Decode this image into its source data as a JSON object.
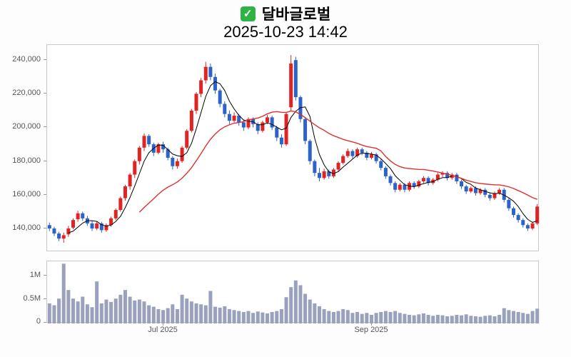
{
  "header": {
    "check_glyph": "✓",
    "title": "달바글로벌",
    "timestamp": "2025-10-23 14:42"
  },
  "price_axis": {
    "labels": [
      "240,000",
      "220,000",
      "200,000",
      "180,000",
      "160,000",
      "140,000"
    ],
    "values": [
      240000,
      220000,
      200000,
      180000,
      160000,
      140000
    ]
  },
  "volume_axis": {
    "labels": [
      "1M",
      "0.5M",
      "0"
    ],
    "values": [
      1000000,
      500000,
      0
    ]
  },
  "x_axis": {
    "labels": [
      "Jul 2025",
      "Sep 2025"
    ]
  },
  "chart_data": {
    "type": "candlestick",
    "title": "달바글로벌",
    "subtitle": "2025-10-23 14:42",
    "ylim": [
      126000,
      249000
    ],
    "volume_ylim": [
      0,
      1300000
    ],
    "ma_periods": {
      "short": 5,
      "long": 20
    },
    "legend_position": "none",
    "grid": false,
    "colors": {
      "up": "#e02323",
      "down": "#2d63c8",
      "ma_short": "#000000",
      "ma_long": "#e03030",
      "volume": "#99a1bd"
    },
    "candle_format": [
      "open",
      "high",
      "low",
      "close",
      "volume"
    ],
    "candles": [
      [
        142000,
        143500,
        138500,
        140000,
        420000
      ],
      [
        140000,
        141000,
        135500,
        137000,
        380000
      ],
      [
        137000,
        138000,
        132500,
        134000,
        520000
      ],
      [
        134000,
        137500,
        131500,
        136000,
        1250000
      ],
      [
        136500,
        141500,
        135000,
        140000,
        700000
      ],
      [
        140500,
        146000,
        139500,
        145000,
        520000
      ],
      [
        145500,
        150500,
        144000,
        149000,
        460000
      ],
      [
        149000,
        150000,
        144500,
        146000,
        560000
      ],
      [
        146000,
        147500,
        141500,
        143000,
        400000
      ],
      [
        143000,
        144500,
        138500,
        140000,
        340000
      ],
      [
        140000,
        144000,
        139000,
        143000,
        880000
      ],
      [
        143000,
        144000,
        137500,
        139000,
        420000
      ],
      [
        139000,
        143000,
        138000,
        142000,
        500000
      ],
      [
        142000,
        147000,
        141000,
        146000,
        450000
      ],
      [
        146000,
        152000,
        145000,
        151000,
        520000
      ],
      [
        151000,
        159000,
        150000,
        158000,
        600000
      ],
      [
        158000,
        166000,
        156500,
        165000,
        700000
      ],
      [
        165000,
        173000,
        163000,
        172000,
        560000
      ],
      [
        172000,
        181000,
        170000,
        180000,
        480000
      ],
      [
        180000,
        189000,
        178000,
        188000,
        500000
      ],
      [
        188000,
        196500,
        186000,
        195000,
        460000
      ],
      [
        195000,
        196000,
        188500,
        190000,
        380000
      ],
      [
        190000,
        191000,
        183000,
        185000,
        350000
      ],
      [
        185000,
        191000,
        184000,
        190000,
        300000
      ],
      [
        190000,
        191500,
        185000,
        187000,
        280000
      ],
      [
        187000,
        188000,
        180500,
        182000,
        320000
      ],
      [
        182000,
        183000,
        175000,
        177000,
        400000
      ],
      [
        177000,
        181500,
        175500,
        180000,
        300000
      ],
      [
        180000,
        189000,
        179000,
        188000,
        600000
      ],
      [
        188000,
        199000,
        187000,
        198000,
        520000
      ],
      [
        198000,
        211000,
        197000,
        210000,
        460000
      ],
      [
        210000,
        221000,
        208000,
        220000,
        420000
      ],
      [
        220000,
        229500,
        218000,
        228000,
        400000
      ],
      [
        228000,
        239000,
        226000,
        236000,
        380000
      ],
      [
        236000,
        238000,
        228000,
        230000,
        680000
      ],
      [
        230000,
        232000,
        220000,
        222000,
        350000
      ],
      [
        222000,
        223000,
        212000,
        214000,
        330000
      ],
      [
        214000,
        215500,
        206000,
        208000,
        360000
      ],
      [
        208000,
        210000,
        202000,
        204000,
        300000
      ],
      [
        204000,
        209000,
        203000,
        207000,
        280000
      ],
      [
        207000,
        208000,
        201000,
        203000,
        260000
      ],
      [
        203000,
        204500,
        198000,
        200000,
        240000
      ],
      [
        200000,
        206000,
        199000,
        205000,
        260000
      ],
      [
        205000,
        206000,
        200000,
        202000,
        220000
      ],
      [
        202000,
        203000,
        196000,
        198000,
        250000
      ],
      [
        198000,
        204000,
        197000,
        203000,
        230000
      ],
      [
        203000,
        207500,
        202000,
        206000,
        210000
      ],
      [
        206000,
        207000,
        198500,
        200000,
        240000
      ],
      [
        200000,
        201000,
        192000,
        194000,
        260000
      ],
      [
        194000,
        196000,
        188000,
        190000,
        300000
      ],
      [
        190000,
        209000,
        189000,
        208000,
        550000
      ],
      [
        212000,
        243000,
        210000,
        238000,
        760000
      ],
      [
        240000,
        242000,
        216000,
        218000,
        900000
      ],
      [
        218000,
        219000,
        203000,
        205000,
        800000
      ],
      [
        205000,
        206000,
        190000,
        192000,
        620000
      ],
      [
        192000,
        193000,
        178000,
        180000,
        500000
      ],
      [
        180000,
        181000,
        171000,
        173000,
        420000
      ],
      [
        173000,
        176000,
        168000,
        170000,
        360000
      ],
      [
        170000,
        175500,
        169000,
        174000,
        300000
      ],
      [
        174000,
        175000,
        169500,
        171000,
        260000
      ],
      [
        171000,
        176000,
        170000,
        175000,
        240000
      ],
      [
        175000,
        180000,
        174000,
        179000,
        260000
      ],
      [
        179000,
        184000,
        178000,
        183000,
        300000
      ],
      [
        183000,
        187500,
        182000,
        186000,
        280000
      ],
      [
        186000,
        187000,
        181500,
        183000,
        220000
      ],
      [
        183000,
        188000,
        182000,
        187000,
        240000
      ],
      [
        187000,
        188000,
        183500,
        185000,
        200000
      ],
      [
        185000,
        186000,
        180500,
        182000,
        220000
      ],
      [
        182000,
        185500,
        181000,
        184000,
        180000
      ],
      [
        184000,
        185000,
        178500,
        180000,
        220000
      ],
      [
        180000,
        181000,
        174500,
        176000,
        240000
      ],
      [
        176000,
        177000,
        169500,
        171000,
        260000
      ],
      [
        171000,
        172000,
        165500,
        167000,
        240000
      ],
      [
        167000,
        168000,
        161500,
        163000,
        260000
      ],
      [
        163000,
        167000,
        162000,
        166000,
        220000
      ],
      [
        166000,
        167000,
        161500,
        163000,
        200000
      ],
      [
        163000,
        168000,
        162000,
        167000,
        180000
      ],
      [
        167000,
        168000,
        163500,
        165000,
        170000
      ],
      [
        165000,
        169000,
        164000,
        168000,
        190000
      ],
      [
        168000,
        171000,
        167000,
        170000,
        210000
      ],
      [
        170000,
        171000,
        165500,
        167000,
        180000
      ],
      [
        167000,
        170000,
        166000,
        169000,
        160000
      ],
      [
        169000,
        173000,
        168000,
        172000,
        180000
      ],
      [
        172000,
        174000,
        170500,
        173000,
        170000
      ],
      [
        173000,
        174000,
        168500,
        170000,
        150000
      ],
      [
        170000,
        173000,
        169000,
        172000,
        160000
      ],
      [
        172000,
        173000,
        166500,
        168000,
        180000
      ],
      [
        168000,
        169000,
        163500,
        165000,
        170000
      ],
      [
        165000,
        166000,
        160500,
        162000,
        190000
      ],
      [
        162000,
        165000,
        161000,
        164000,
        160000
      ],
      [
        164000,
        165000,
        159500,
        161000,
        150000
      ],
      [
        161000,
        164000,
        160000,
        163000,
        140000
      ],
      [
        163000,
        164000,
        158500,
        160000,
        160000
      ],
      [
        160000,
        161000,
        156500,
        158000,
        170000
      ],
      [
        158000,
        162000,
        157000,
        161000,
        150000
      ],
      [
        161000,
        164000,
        160000,
        163000,
        180000
      ],
      [
        163000,
        164000,
        155500,
        157000,
        320000
      ],
      [
        157000,
        158000,
        150500,
        152000,
        280000
      ],
      [
        152000,
        153000,
        146500,
        148000,
        260000
      ],
      [
        148000,
        149000,
        143500,
        145000,
        240000
      ],
      [
        145000,
        146000,
        140500,
        142000,
        220000
      ],
      [
        142000,
        143000,
        138500,
        140000,
        200000
      ],
      [
        140000,
        144000,
        139000,
        143000,
        260000
      ],
      [
        143000,
        154500,
        142000,
        153000,
        310000
      ]
    ]
  }
}
